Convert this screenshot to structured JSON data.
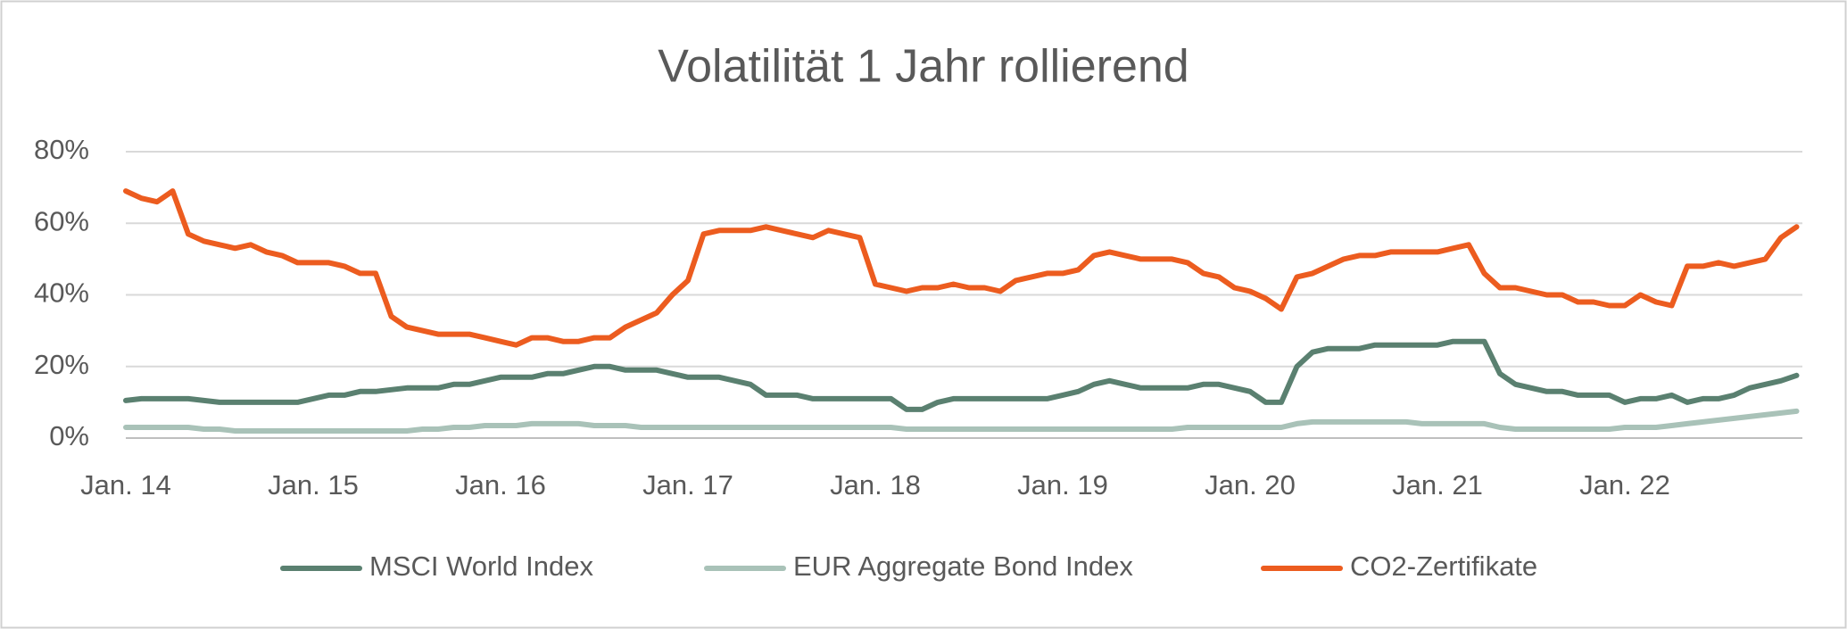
{
  "chart_data": {
    "type": "line",
    "title": "Volatilität 1 Jahr rollierend",
    "categories": [
      "Jan. 14",
      null,
      null,
      null,
      null,
      null,
      null,
      null,
      null,
      null,
      null,
      null,
      "Jan. 15",
      null,
      null,
      null,
      null,
      null,
      null,
      null,
      null,
      null,
      null,
      null,
      "Jan. 16",
      null,
      null,
      null,
      null,
      null,
      null,
      null,
      null,
      null,
      null,
      null,
      "Jan. 17",
      null,
      null,
      null,
      null,
      null,
      null,
      null,
      null,
      null,
      null,
      null,
      "Jan. 18",
      null,
      null,
      null,
      null,
      null,
      null,
      null,
      null,
      null,
      null,
      null,
      "Jan. 19",
      null,
      null,
      null,
      null,
      null,
      null,
      null,
      null,
      null,
      null,
      null,
      "Jan. 20",
      null,
      null,
      null,
      null,
      null,
      null,
      null,
      null,
      null,
      null,
      null,
      "Jan. 21",
      null,
      null,
      null,
      null,
      null,
      null,
      null,
      null,
      null,
      null,
      null,
      "Jan. 22",
      null,
      null,
      null,
      null,
      null,
      null,
      null,
      null,
      null,
      null,
      null
    ],
    "series": [
      {
        "name": "MSCI World Index",
        "color": "#5a8070",
        "values": [
          10.5,
          11,
          11,
          11,
          11,
          10.5,
          10,
          10,
          10,
          10,
          10,
          10,
          11,
          12,
          12,
          13,
          13,
          13.5,
          14,
          14,
          14,
          15,
          15,
          16,
          17,
          17,
          17,
          18,
          18,
          19,
          20,
          20,
          19,
          19,
          19,
          18,
          17,
          17,
          17,
          16,
          15,
          12,
          12,
          12,
          11,
          11,
          11,
          11,
          11,
          11,
          8,
          8,
          10,
          11,
          11,
          11,
          11,
          11,
          11,
          11,
          12,
          13,
          15,
          16,
          15,
          14,
          14,
          14,
          14,
          15,
          15,
          14,
          13,
          10,
          10,
          20,
          24,
          25,
          25,
          25,
          26,
          26,
          26,
          26,
          26,
          27,
          27,
          27,
          18,
          15,
          14,
          13,
          13,
          12,
          12,
          12,
          10,
          11,
          11,
          12,
          10,
          11,
          11,
          12,
          14,
          15,
          16,
          17.5
        ]
      },
      {
        "name": "EUR Aggregate Bond Index",
        "color": "#a9c2b8",
        "values": [
          3,
          3,
          3,
          3,
          3,
          2.5,
          2.5,
          2,
          2,
          2,
          2,
          2,
          2,
          2,
          2,
          2,
          2,
          2,
          2,
          2.5,
          2.5,
          3,
          3,
          3.5,
          3.5,
          3.5,
          4,
          4,
          4,
          4,
          3.5,
          3.5,
          3.5,
          3,
          3,
          3,
          3,
          3,
          3,
          3,
          3,
          3,
          3,
          3,
          3,
          3,
          3,
          3,
          3,
          3,
          2.5,
          2.5,
          2.5,
          2.5,
          2.5,
          2.5,
          2.5,
          2.5,
          2.5,
          2.5,
          2.5,
          2.5,
          2.5,
          2.5,
          2.5,
          2.5,
          2.5,
          2.5,
          3,
          3,
          3,
          3,
          3,
          3,
          3,
          4,
          4.5,
          4.5,
          4.5,
          4.5,
          4.5,
          4.5,
          4.5,
          4,
          4,
          4,
          4,
          4,
          3,
          2.5,
          2.5,
          2.5,
          2.5,
          2.5,
          2.5,
          2.5,
          3,
          3,
          3,
          3.5,
          4,
          4.5,
          5,
          5.5,
          6,
          6.5,
          7,
          7.5
        ]
      },
      {
        "name": "CO2-Zertifikate",
        "color": "#ec5c1f",
        "values": [
          69,
          67,
          66,
          69,
          57,
          55,
          54,
          53,
          54,
          52,
          51,
          49,
          49,
          49,
          48,
          46,
          46,
          34,
          31,
          30,
          29,
          29,
          29,
          28,
          27,
          26,
          28,
          28,
          27,
          27,
          28,
          28,
          31,
          33,
          35,
          40,
          44,
          57,
          58,
          58,
          58,
          59,
          58,
          57,
          56,
          58,
          57,
          56,
          43,
          42,
          41,
          42,
          42,
          43,
          42,
          42,
          41,
          44,
          45,
          46,
          46,
          47,
          51,
          52,
          51,
          50,
          50,
          50,
          49,
          46,
          45,
          42,
          41,
          39,
          36,
          45,
          46,
          48,
          50,
          51,
          51,
          52,
          52,
          52,
          52,
          53,
          54,
          46,
          42,
          42,
          41,
          40,
          40,
          38,
          38,
          37,
          37,
          40,
          38,
          37,
          48,
          48,
          49,
          48,
          49,
          50,
          56,
          59
        ]
      }
    ],
    "ylim": [
      0,
      80
    ],
    "yticks": [
      {
        "value": 0,
        "label": "0%"
      },
      {
        "value": 20,
        "label": "20%"
      },
      {
        "value": 40,
        "label": "40%"
      },
      {
        "value": 60,
        "label": "60%"
      },
      {
        "value": 80,
        "label": "80%"
      }
    ],
    "grid": true,
    "legend": "bottom"
  }
}
